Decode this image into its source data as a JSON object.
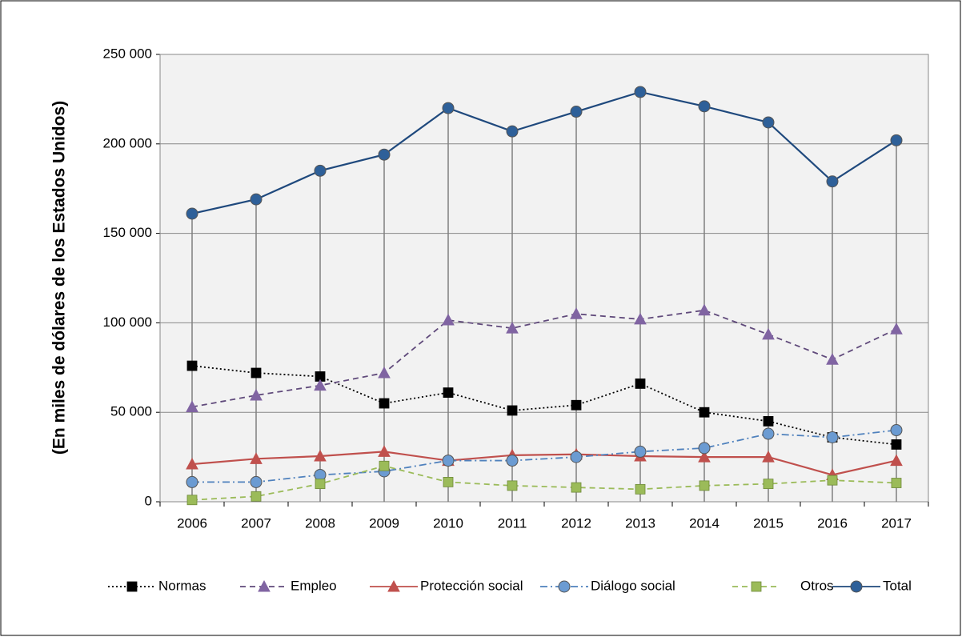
{
  "chart_data": {
    "type": "line",
    "y_label": "(En miles de dólares de los Estados Unidos)",
    "categories": [
      "2006",
      "2007",
      "2008",
      "2009",
      "2010",
      "2011",
      "2012",
      "2013",
      "2014",
      "2015",
      "2016",
      "2017"
    ],
    "series": [
      {
        "name": "Normas",
        "color": "#000000",
        "marker": "square",
        "marker_color": "#000000",
        "line_style": "dotted",
        "values": [
          76000,
          72000,
          70000,
          55000,
          61000,
          51000,
          54000,
          66000,
          50000,
          45000,
          36000,
          32000
        ]
      },
      {
        "name": "Empleo",
        "color": "#604a7b",
        "marker": "triangle",
        "marker_color": "#8064a2",
        "line_style": "dashed",
        "values": [
          53000,
          59500,
          65000,
          72000,
          101500,
          97000,
          105000,
          102000,
          107000,
          93500,
          79500,
          96500
        ]
      },
      {
        "name": "Protección social",
        "color": "#c0504d",
        "marker": "triangle",
        "marker_color": "#c0504d",
        "line_style": "solid",
        "values": [
          21000,
          24000,
          25500,
          28000,
          23000,
          26000,
          26500,
          25500,
          25000,
          25000,
          15000,
          23000
        ]
      },
      {
        "name": "Diálogo social",
        "color": "#4f81bd",
        "marker": "circle",
        "marker_color": "#6b9bd2",
        "line_style": "dashdot",
        "values": [
          11000,
          11000,
          15000,
          17000,
          23000,
          23000,
          25000,
          28000,
          30000,
          38000,
          36000,
          40000
        ]
      },
      {
        "name": "Otros",
        "color": "#9bbb59",
        "marker": "square",
        "marker_color": "#9bbb59",
        "line_style": "dashed",
        "values": [
          1000,
          3000,
          10000,
          20000,
          11000,
          9000,
          8000,
          7000,
          9000,
          10000,
          12000,
          10500
        ]
      },
      {
        "name": "Total",
        "color": "#1f497d",
        "marker": "circle",
        "marker_color": "#2e6099",
        "line_style": "solid",
        "values": [
          161000,
          169000,
          185000,
          194000,
          220000,
          207000,
          218000,
          229000,
          221000,
          212000,
          179000,
          202000
        ]
      }
    ],
    "drop_lines": true,
    "ylim": [
      0,
      250000
    ],
    "yticks": [
      0,
      {
        "value": 50000,
        "label": "50 000"
      },
      {
        "value": 100000,
        "label": "100 000"
      },
      {
        "value": 150000,
        "label": "150 000"
      },
      {
        "value": 200000,
        "label": "200 000"
      },
      {
        "value": 250000,
        "label": "250 000"
      }
    ],
    "grid": true,
    "legend": "bottom"
  }
}
